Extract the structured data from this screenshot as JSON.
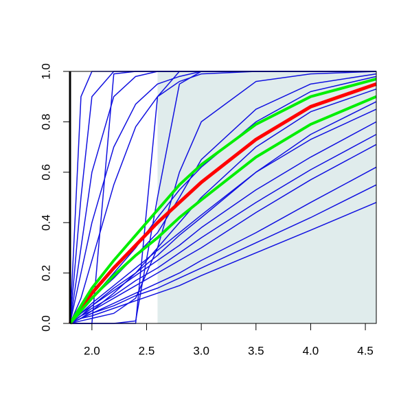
{
  "chart_data": {
    "type": "line",
    "xlim": [
      1.8,
      4.6
    ],
    "ylim": [
      0,
      1
    ],
    "xticks": [
      {
        "value": 2,
        "label": "2.0"
      },
      2.5,
      {
        "value": 3,
        "label": "3.0"
      },
      3.5,
      {
        "value": 4,
        "label": "4.0"
      },
      4.5
    ],
    "yticks": [
      {
        "value": 0,
        "label": "0.0"
      },
      0.2,
      0.4,
      0.6,
      0.8,
      {
        "value": 1,
        "label": "1.0"
      }
    ],
    "shade": {
      "xlim": [
        2.6,
        4.6
      ],
      "color": "#e0ecec"
    },
    "x": [
      1.8,
      1.9,
      2.0,
      2.2,
      2.4,
      2.6,
      2.8,
      3.0,
      3.5,
      4.0,
      4.6
    ],
    "series": [
      {
        "color": "#1010e0",
        "width": 1.5,
        "values": [
          0,
          0.9,
          1,
          1,
          1,
          1,
          1,
          1,
          1,
          1,
          1
        ]
      },
      {
        "color": "#1010e0",
        "width": 1.5,
        "values": [
          0,
          0.5,
          0.9,
          1,
          1,
          1,
          1,
          1,
          1,
          1,
          1
        ]
      },
      {
        "color": "#1010e0",
        "width": 1.5,
        "values": [
          0,
          0.3,
          0.6,
          0.9,
          0.98,
          1,
          1,
          1,
          1,
          1,
          1
        ]
      },
      {
        "color": "#1010e0",
        "width": 1.5,
        "values": [
          0,
          0.2,
          0.4,
          0.7,
          0.87,
          0.95,
          0.98,
          1,
          1,
          1,
          1
        ]
      },
      {
        "color": "#1010e0",
        "width": 1.5,
        "values": [
          0,
          0,
          0,
          0.99,
          1,
          1,
          1,
          1,
          1,
          1,
          1
        ]
      },
      {
        "color": "#1010e0",
        "width": 1.5,
        "values": [
          0,
          0,
          0,
          0,
          0,
          0.9,
          1,
          1,
          1,
          1,
          1
        ]
      },
      {
        "color": "#1010e0",
        "width": 1.5,
        "values": [
          0,
          0,
          0,
          0,
          0.01,
          0.5,
          0.95,
          1,
          1,
          1,
          1
        ]
      },
      {
        "color": "#1010e0",
        "width": 1.5,
        "values": [
          0,
          0.01,
          0.02,
          0.04,
          0.1,
          0.3,
          0.6,
          0.8,
          0.96,
          0.99,
          1
        ]
      },
      {
        "color": "#1010e0",
        "width": 1.5,
        "values": [
          0,
          0.05,
          0.1,
          0.18,
          0.27,
          0.36,
          0.5,
          0.65,
          0.85,
          0.95,
          0.99
        ]
      },
      {
        "color": "#1010e0",
        "width": 1.5,
        "values": [
          0,
          0.04,
          0.08,
          0.15,
          0.22,
          0.29,
          0.36,
          0.43,
          0.6,
          0.73,
          0.85
        ]
      },
      {
        "color": "#1010e0",
        "width": 1.5,
        "values": [
          0,
          0.04,
          0.07,
          0.13,
          0.19,
          0.25,
          0.31,
          0.38,
          0.53,
          0.66,
          0.8
        ]
      },
      {
        "color": "#1010e0",
        "width": 1.5,
        "values": [
          0,
          0.03,
          0.06,
          0.11,
          0.17,
          0.22,
          0.28,
          0.34,
          0.48,
          0.61,
          0.75
        ]
      },
      {
        "color": "#1010e0",
        "width": 1.5,
        "values": [
          0,
          0.03,
          0.05,
          0.1,
          0.15,
          0.2,
          0.25,
          0.3,
          0.44,
          0.57,
          0.71
        ]
      },
      {
        "color": "#1010e0",
        "width": 1.5,
        "values": [
          0,
          0.02,
          0.04,
          0.08,
          0.12,
          0.16,
          0.2,
          0.25,
          0.36,
          0.48,
          0.62
        ]
      },
      {
        "color": "#1010e0",
        "width": 1.5,
        "values": [
          0,
          0.02,
          0.04,
          0.07,
          0.11,
          0.14,
          0.18,
          0.22,
          0.32,
          0.42,
          0.55
        ]
      },
      {
        "color": "#1010e0",
        "width": 1.5,
        "values": [
          0,
          0.02,
          0.03,
          0.06,
          0.09,
          0.12,
          0.15,
          0.19,
          0.28,
          0.37,
          0.48
        ]
      },
      {
        "color": "#1010e0",
        "width": 1.5,
        "values": [
          0,
          0.05,
          0.1,
          0.2,
          0.3,
          0.42,
          0.53,
          0.62,
          0.8,
          0.92,
          0.98
        ]
      },
      {
        "color": "#1010e0",
        "width": 1.5,
        "values": [
          0,
          0.03,
          0.07,
          0.14,
          0.2,
          0.27,
          0.35,
          0.42,
          0.6,
          0.75,
          0.88
        ]
      },
      {
        "color": "#1010e0",
        "width": 1.5,
        "values": [
          0,
          0.1,
          0.25,
          0.55,
          0.78,
          0.9,
          0.96,
          0.99,
          1,
          1,
          1
        ]
      },
      {
        "color": "#1010e0",
        "width": 1.5,
        "values": [
          0,
          0.02,
          0.05,
          0.12,
          0.2,
          0.3,
          0.4,
          0.5,
          0.7,
          0.84,
          0.93
        ]
      },
      {
        "color": "#ff0000",
        "width": 5,
        "values": [
          0,
          0.06,
          0.12,
          0.22,
          0.31,
          0.4,
          0.48,
          0.56,
          0.73,
          0.86,
          0.95
        ]
      },
      {
        "color": "#00ee00",
        "width": 4,
        "values": [
          0,
          0.07,
          0.14,
          0.25,
          0.35,
          0.45,
          0.55,
          0.63,
          0.79,
          0.9,
          0.97
        ]
      },
      {
        "color": "#00ee00",
        "width": 4,
        "values": [
          0,
          0.05,
          0.1,
          0.19,
          0.27,
          0.34,
          0.42,
          0.49,
          0.66,
          0.79,
          0.9
        ]
      }
    ]
  }
}
